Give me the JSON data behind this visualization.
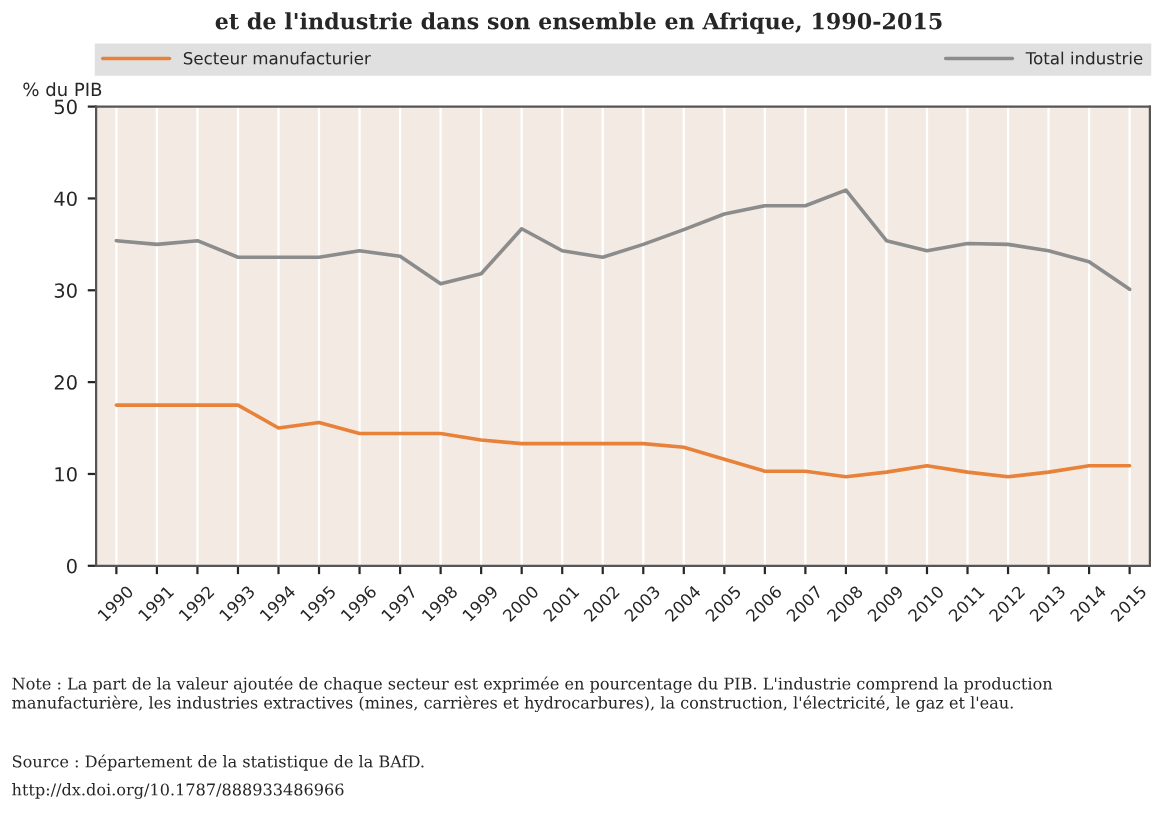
{
  "chart_data": {
    "type": "line",
    "title": "et de l'industrie dans son ensemble en Afrique, 1990-2015",
    "ylabel": "% du PIB",
    "categories": [
      "1990",
      "1991",
      "1992",
      "1993",
      "1994",
      "1995",
      "1996",
      "1997",
      "1998",
      "1999",
      "2000",
      "2001",
      "2002",
      "2003",
      "2004",
      "2005",
      "2006",
      "2007",
      "2008",
      "2009",
      "2010",
      "2011",
      "2012",
      "2013",
      "2014",
      "2015"
    ],
    "series": [
      {
        "name": "Secteur manufacturier",
        "color": "#e8823a",
        "values": [
          17.5,
          17.5,
          17.5,
          17.5,
          15.0,
          15.6,
          14.4,
          14.4,
          14.4,
          13.7,
          13.3,
          13.3,
          13.3,
          13.3,
          12.9,
          11.6,
          10.3,
          10.3,
          9.7,
          10.2,
          10.9,
          10.2,
          9.7,
          10.2,
          10.9,
          10.9
        ]
      },
      {
        "name": "Total industrie",
        "color": "#8c8c8c",
        "values": [
          35.4,
          35.0,
          35.4,
          33.6,
          33.6,
          33.6,
          34.3,
          33.7,
          30.7,
          31.8,
          36.7,
          34.3,
          33.6,
          35.0,
          36.6,
          38.3,
          39.2,
          39.2,
          40.9,
          35.4,
          34.3,
          35.1,
          35.0,
          34.3,
          33.1,
          30.1
        ]
      }
    ],
    "ylim": [
      0,
      50
    ],
    "yticks": [
      0,
      10,
      20,
      30,
      40,
      50
    ],
    "grid": "x",
    "legend": "top",
    "line_style": "solid",
    "marker": "none",
    "annotations": [
      "Note : La part de la valeur ajoutée de chaque secteur est exprimée en pourcentage du PIB. L'industrie comprend la production manufacturière, les industries extractives (mines, carrières et hydrocarbures), la construction, l'électricité, le gaz et l'eau.",
      "Source : Département de la statistique de la BAfD.",
      "http://dx.doi.org/10.1787/888933486966"
    ]
  }
}
